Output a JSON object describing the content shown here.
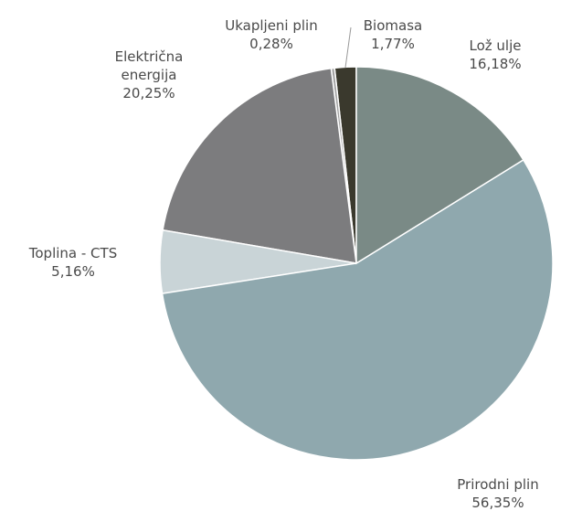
{
  "chart_data": {
    "type": "pie",
    "categories": [
      "Lož ulje",
      "Prirodni plin",
      "Toplina - CTS",
      "Električna energija",
      "Ukapljeni plin",
      "Biomasa"
    ],
    "values": [
      16.18,
      56.35,
      5.16,
      20.25,
      0.28,
      1.77
    ],
    "value_labels": [
      "16,18%",
      "56,35%",
      "5,16%",
      "20,25%",
      "0,28%",
      "1,77%"
    ],
    "colors": [
      "#7a8a86",
      "#8fa8ae",
      "#c9d4d7",
      "#7c7c7e",
      "#a3a3a3",
      "#3a392d"
    ]
  }
}
